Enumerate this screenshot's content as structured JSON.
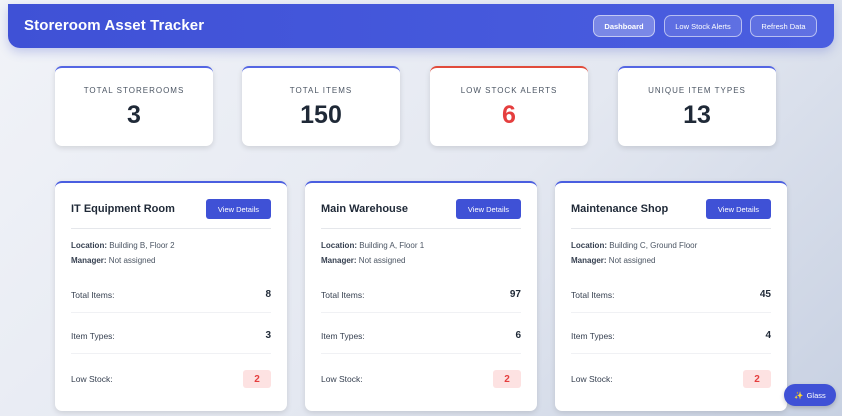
{
  "header": {
    "title": "Storeroom Asset Tracker",
    "nav": {
      "dashboard": "Dashboard",
      "low_stock": "Low Stock Alerts",
      "refresh": "Refresh Data"
    }
  },
  "stats": [
    {
      "label": "TOTAL STOREROOMS",
      "value": "3"
    },
    {
      "label": "TOTAL ITEMS",
      "value": "150"
    },
    {
      "label": "LOW STOCK ALERTS",
      "value": "6"
    },
    {
      "label": "UNIQUE ITEM TYPES",
      "value": "13"
    }
  ],
  "labels": {
    "view_details": "View Details",
    "location": "Location:",
    "manager": "Manager:",
    "total_items": "Total Items:",
    "item_types": "Item Types:",
    "low_stock": "Low Stock:"
  },
  "rooms": [
    {
      "name": "IT Equipment Room",
      "location": "Building B, Floor 2",
      "manager": "Not assigned",
      "total_items": "8",
      "item_types": "3",
      "low_stock": "2"
    },
    {
      "name": "Main Warehouse",
      "location": "Building A, Floor 1",
      "manager": "Not assigned",
      "total_items": "97",
      "item_types": "6",
      "low_stock": "2"
    },
    {
      "name": "Maintenance Shop",
      "location": "Building C, Ground Floor",
      "manager": "Not assigned",
      "total_items": "45",
      "item_types": "4",
      "low_stock": "2"
    }
  ],
  "glass_button": {
    "icon": "sparkle-icon",
    "label": "Glass"
  },
  "colors": {
    "accent": "#3f51d6",
    "alert": "#e53e3e"
  }
}
